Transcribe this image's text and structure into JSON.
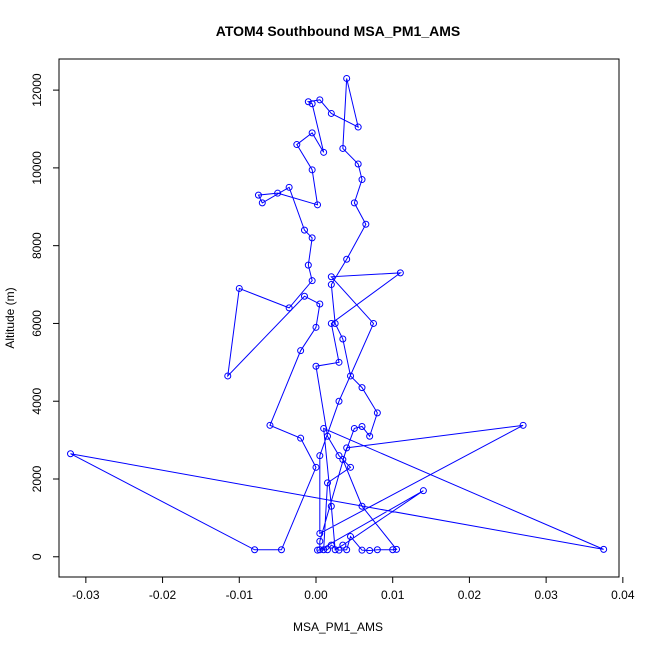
{
  "chart_data": {
    "type": "line",
    "title": "ATOM4 Southbound MSA_PM1_AMS",
    "xlabel": "MSA_PM1_AMS",
    "ylabel": "Altitude (m)",
    "xlim": [
      -0.0335,
      0.0395
    ],
    "ylim": [
      -520,
      12800
    ],
    "x_ticks": [
      -0.03,
      -0.02,
      -0.01,
      0.0,
      0.01,
      0.02,
      0.03,
      0.04
    ],
    "x_tick_labels": [
      "-0.03",
      "-0.02",
      "-0.01",
      "0.00",
      "0.01",
      "0.02",
      "0.03",
      "0.04"
    ],
    "y_ticks": [
      0,
      2000,
      4000,
      6000,
      8000,
      10000,
      12000
    ],
    "y_tick_labels": [
      "0",
      "2000",
      "4000",
      "6000",
      "8000",
      "10000",
      "12000"
    ],
    "grid": false,
    "line_color": "#0000ff",
    "marker": "open-circle",
    "series": [
      {
        "points": [
          [
            0.0002,
            170
          ],
          [
            0.0015,
            180
          ],
          [
            0.002,
            300
          ],
          [
            0.003,
            170
          ],
          [
            0.004,
            180
          ],
          [
            0.0045,
            520
          ],
          [
            0.006,
            170
          ],
          [
            0.007,
            160
          ],
          [
            0.008,
            180
          ],
          [
            0.01,
            180
          ],
          [
            0.0105,
            190
          ],
          [
            0.006,
            1300
          ],
          [
            0.0035,
            2500
          ],
          [
            0.005,
            3300
          ],
          [
            0.006,
            3350
          ],
          [
            0.007,
            3100
          ],
          [
            0.008,
            3700
          ],
          [
            0.006,
            4350
          ],
          [
            0.0045,
            4650
          ],
          [
            0.0035,
            5600
          ],
          [
            0.0025,
            6000
          ],
          [
            0.002,
            7000
          ],
          [
            0.004,
            7650
          ],
          [
            0.0065,
            8550
          ],
          [
            0.005,
            9100
          ],
          [
            0.006,
            9700
          ],
          [
            0.0055,
            10100
          ],
          [
            0.0035,
            10500
          ],
          [
            0.004,
            12300
          ],
          [
            0.0055,
            11050
          ],
          [
            0.002,
            11400
          ],
          [
            0.0005,
            11750
          ],
          [
            -0.001,
            11700
          ],
          [
            -0.0005,
            11650
          ],
          [
            0.001,
            10400
          ],
          [
            -0.0005,
            10900
          ],
          [
            -0.0025,
            10600
          ],
          [
            -0.0005,
            9950
          ],
          [
            0.0002,
            9050
          ],
          [
            -0.005,
            9350
          ],
          [
            -0.0075,
            9300
          ],
          [
            -0.007,
            9100
          ],
          [
            -0.0035,
            9500
          ],
          [
            -0.0015,
            8400
          ],
          [
            -0.0005,
            8200
          ],
          [
            -0.001,
            7500
          ],
          [
            -0.0005,
            7100
          ],
          [
            -0.0035,
            6400
          ],
          [
            -0.01,
            6900
          ],
          [
            -0.0115,
            4650
          ],
          [
            -0.0015,
            6700
          ],
          [
            0.0005,
            6500
          ],
          [
            0.0,
            5900
          ],
          [
            -0.002,
            5300
          ],
          [
            -0.006,
            3380
          ],
          [
            -0.002,
            3050
          ],
          [
            0.0,
            2300
          ],
          [
            -0.0045,
            180
          ],
          [
            -0.008,
            180
          ],
          [
            -0.032,
            2650
          ],
          [
            0.0375,
            190
          ],
          [
            0.001,
            3300
          ],
          [
            0.002,
            1300
          ],
          [
            0.0025,
            180
          ],
          [
            0.0035,
            300
          ],
          [
            0.014,
            1700
          ],
          [
            0.0005,
            180
          ],
          [
            0.0005,
            400
          ],
          [
            0.004,
            2800
          ],
          [
            0.027,
            3380
          ],
          [
            0.0005,
            600
          ],
          [
            0.0005,
            2600
          ],
          [
            0.003,
            4000
          ],
          [
            0.0075,
            6000
          ],
          [
            0.002,
            7200
          ],
          [
            0.011,
            7300
          ],
          [
            0.002,
            6000
          ],
          [
            0.003,
            5000
          ],
          [
            0.0,
            4900
          ],
          [
            0.0015,
            3100
          ],
          [
            0.003,
            2600
          ],
          [
            0.0045,
            2300
          ],
          [
            0.0015,
            1900
          ],
          [
            0.001,
            180
          ]
        ]
      }
    ]
  }
}
